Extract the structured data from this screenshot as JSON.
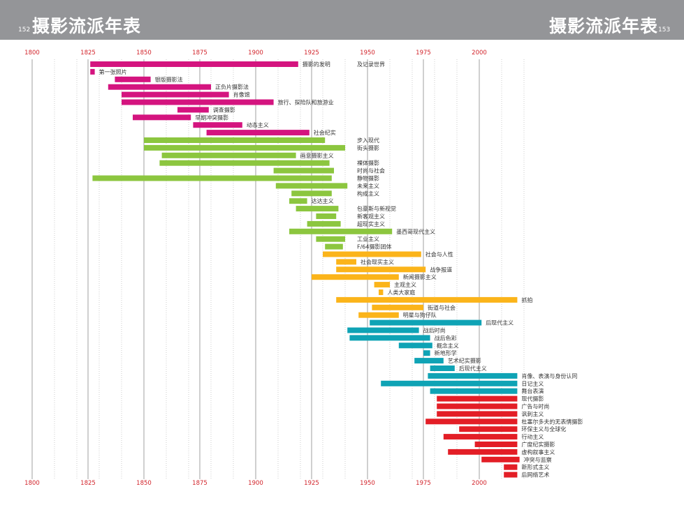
{
  "header": {
    "left_page_number": "152",
    "left_title": "摄影流派年表",
    "right_title": "摄影流派年表",
    "right_page_number": "153",
    "background_color": "#949598"
  },
  "chart_data": {
    "type": "timeline-bar",
    "x_ticks": [
      1800,
      1825,
      1850,
      1875,
      1900,
      1925,
      1950,
      1975,
      2000
    ],
    "xlim": [
      1800,
      2020
    ],
    "minor_grid_interval_years": 10,
    "annotations": [
      "及记录世界"
    ],
    "groups": [
      {
        "color": "#d4147f",
        "items": [
          {
            "label": "摄影的发明",
            "start": 1826,
            "end": 1919
          },
          {
            "label": "第一张照片",
            "start": 1826,
            "end": 1828
          },
          {
            "label": "银版摄影法",
            "start": 1837,
            "end": 1853
          },
          {
            "label": "正负片摄影法",
            "start": 1834,
            "end": 1880
          },
          {
            "label": "肖像馆",
            "start": 1840,
            "end": 1888
          },
          {
            "label": "旅行、探险队和旅游业",
            "start": 1840,
            "end": 1908
          },
          {
            "label": "调查摄影",
            "start": 1865,
            "end": 1879
          },
          {
            "label": "早期冲突摄影",
            "start": 1845,
            "end": 1871
          },
          {
            "label": "动态主义",
            "start": 1872,
            "end": 1894
          },
          {
            "label": "社会纪实",
            "start": 1878,
            "end": 1924
          }
        ]
      },
      {
        "color": "#8cc63f",
        "items": [
          {
            "label": "步入现代",
            "start": 1850,
            "end": 1931
          },
          {
            "label": "街头摄影",
            "start": 1850,
            "end": 1940
          },
          {
            "label": "画意摄影主义",
            "start": 1858,
            "end": 1918
          },
          {
            "label": "裸体摄影",
            "start": 1857,
            "end": 1933
          },
          {
            "label": "时尚与社会",
            "start": 1908,
            "end": 1935
          },
          {
            "label": "静物摄影",
            "start": 1827,
            "end": 1934
          },
          {
            "label": "未来主义",
            "start": 1909,
            "end": 1941
          },
          {
            "label": "构成主义",
            "start": 1916,
            "end": 1934
          },
          {
            "label": "达达主义",
            "start": 1915,
            "end": 1923
          },
          {
            "label": "包豪斯与新视觉",
            "start": 1918,
            "end": 1937
          },
          {
            "label": "新客观主义",
            "start": 1927,
            "end": 1936
          },
          {
            "label": "超现实主义",
            "start": 1923,
            "end": 1938
          },
          {
            "label": "墨西哥现代主义",
            "start": 1915,
            "end": 1961
          },
          {
            "label": "工业主义",
            "start": 1927,
            "end": 1940
          },
          {
            "label": "F/64摄影团体",
            "start": 1931,
            "end": 1939
          }
        ]
      },
      {
        "color": "#fbb41a",
        "items": [
          {
            "label": "社会与人性",
            "start": 1930,
            "end": 1974
          },
          {
            "label": "社会现实主义",
            "start": 1936,
            "end": 1945
          },
          {
            "label": "战争报道",
            "start": 1936,
            "end": 1976
          },
          {
            "label": "新闻摄影主义",
            "start": 1925,
            "end": 1964
          },
          {
            "label": "主观主义",
            "start": 1953,
            "end": 1960
          },
          {
            "label": "人类大家庭",
            "start": 1955,
            "end": 1957
          },
          {
            "label": "抓拍",
            "start": 1936,
            "end": 2017
          },
          {
            "label": "街道与社会",
            "start": 1952,
            "end": 1975
          },
          {
            "label": "明星与狗仔队",
            "start": 1946,
            "end": 1964
          }
        ]
      },
      {
        "color": "#0fa3b5",
        "items": [
          {
            "label": "后现代主义",
            "start": 1951,
            "end": 2001
          },
          {
            "label": "战后时尚",
            "start": 1941,
            "end": 1973
          },
          {
            "label": "战后色彩",
            "start": 1942,
            "end": 1978
          },
          {
            "label": "概念主义",
            "start": 1964,
            "end": 1979
          },
          {
            "label": "新地形学",
            "start": 1975,
            "end": 1978
          },
          {
            "label": "艺术纪实摄影",
            "start": 1971,
            "end": 1984
          },
          {
            "label": "后现代主义",
            "start": 1978,
            "end": 1989
          },
          {
            "label": "肖像、表演与身份认同",
            "start": 1977,
            "end": 2017
          },
          {
            "label": "日记主义",
            "start": 1956,
            "end": 2017
          },
          {
            "label": "舞台表演",
            "start": 1978,
            "end": 2017
          }
        ]
      },
      {
        "color": "#e31e26",
        "items": [
          {
            "label": "现代摄影",
            "start": 1981,
            "end": 2017
          },
          {
            "label": "广告与时尚",
            "start": 1981,
            "end": 2017
          },
          {
            "label": "讽刺主义",
            "start": 1981,
            "end": 2017
          },
          {
            "label": "杜塞尔多夫的无表情摄影",
            "start": 1976,
            "end": 2017
          },
          {
            "label": "环保主义与全球化",
            "start": 1991,
            "end": 2017
          },
          {
            "label": "行动主义",
            "start": 1984,
            "end": 2017
          },
          {
            "label": "广度纪实摄影",
            "start": 1998,
            "end": 2017
          },
          {
            "label": "虚构叙事主义",
            "start": 1986,
            "end": 2017
          },
          {
            "label": "冲突与监察",
            "start": 2001,
            "end": 2018
          },
          {
            "label": "新形式主义",
            "start": 2011,
            "end": 2017
          },
          {
            "label": "后网络艺术",
            "start": 2011,
            "end": 2017
          }
        ]
      }
    ]
  }
}
